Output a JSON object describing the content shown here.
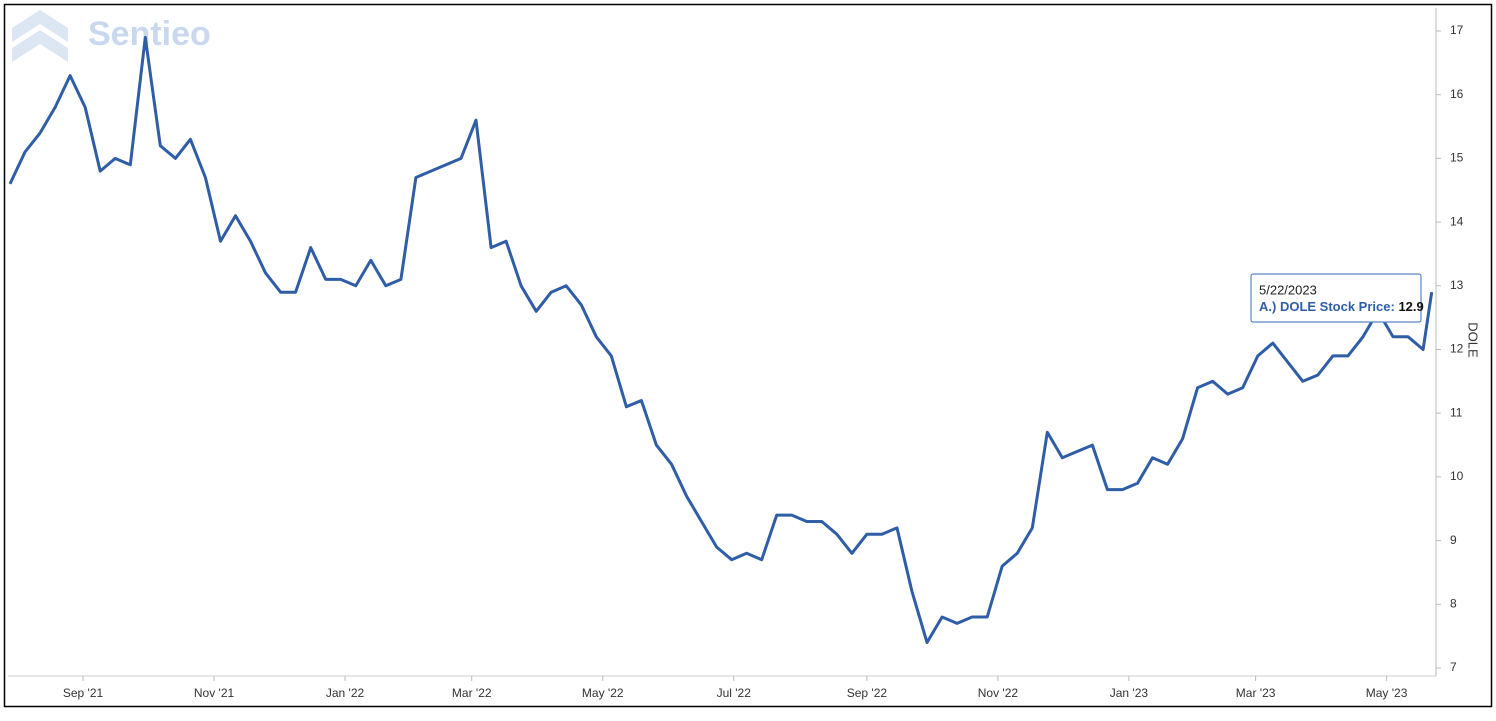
{
  "chart_data": {
    "type": "line",
    "watermark": "Sentieo",
    "y_label": "DOLE",
    "x": [
      "2021-07-29",
      "2021-08-05",
      "2021-08-12",
      "2021-08-19",
      "2021-08-26",
      "2021-09-02",
      "2021-09-09",
      "2021-09-16",
      "2021-09-23",
      "2021-09-30",
      "2021-10-07",
      "2021-10-14",
      "2021-10-21",
      "2021-10-28",
      "2021-11-04",
      "2021-11-11",
      "2021-11-18",
      "2021-11-25",
      "2021-12-02",
      "2021-12-09",
      "2021-12-16",
      "2021-12-23",
      "2021-12-30",
      "2022-01-06",
      "2022-01-13",
      "2022-01-20",
      "2022-01-27",
      "2022-02-03",
      "2022-02-10",
      "2022-02-17",
      "2022-02-24",
      "2022-03-03",
      "2022-03-10",
      "2022-03-17",
      "2022-03-24",
      "2022-03-31",
      "2022-04-07",
      "2022-04-14",
      "2022-04-21",
      "2022-04-28",
      "2022-05-05",
      "2022-05-12",
      "2022-05-19",
      "2022-05-26",
      "2022-06-02",
      "2022-06-09",
      "2022-06-16",
      "2022-06-23",
      "2022-06-30",
      "2022-07-07",
      "2022-07-14",
      "2022-07-21",
      "2022-07-28",
      "2022-08-04",
      "2022-08-11",
      "2022-08-18",
      "2022-08-25",
      "2022-09-01",
      "2022-09-08",
      "2022-09-15",
      "2022-09-22",
      "2022-09-29",
      "2022-10-06",
      "2022-10-13",
      "2022-10-20",
      "2022-10-27",
      "2022-11-03",
      "2022-11-10",
      "2022-11-17",
      "2022-11-24",
      "2022-12-01",
      "2022-12-08",
      "2022-12-15",
      "2022-12-22",
      "2022-12-29",
      "2023-01-05",
      "2023-01-12",
      "2023-01-19",
      "2023-01-26",
      "2023-02-02",
      "2023-02-09",
      "2023-02-16",
      "2023-02-23",
      "2023-03-02",
      "2023-03-09",
      "2023-03-16",
      "2023-03-23",
      "2023-03-30",
      "2023-04-06",
      "2023-04-13",
      "2023-04-20",
      "2023-04-27",
      "2023-05-04",
      "2023-05-11",
      "2023-05-18",
      "2023-05-22"
    ],
    "series": [
      {
        "name": "A.) DOLE Stock Price",
        "color": "#2f5da6",
        "values": [
          14.6,
          15.1,
          15.4,
          15.8,
          16.3,
          15.8,
          14.8,
          15.0,
          14.9,
          16.9,
          15.2,
          15.0,
          15.3,
          14.7,
          13.7,
          14.1,
          13.7,
          13.2,
          12.9,
          12.9,
          13.6,
          13.1,
          13.1,
          13.0,
          13.4,
          13.0,
          13.1,
          14.7,
          14.8,
          14.9,
          15.0,
          15.6,
          13.6,
          13.7,
          13.0,
          12.6,
          12.9,
          13.0,
          12.7,
          12.2,
          11.9,
          11.1,
          11.2,
          10.5,
          10.2,
          9.7,
          9.3,
          8.9,
          8.7,
          8.8,
          8.7,
          9.4,
          9.4,
          9.3,
          9.3,
          9.1,
          8.8,
          9.1,
          9.1,
          9.2,
          8.2,
          7.4,
          7.8,
          7.7,
          7.8,
          7.8,
          8.6,
          8.8,
          9.2,
          10.7,
          10.3,
          10.4,
          10.5,
          9.8,
          9.8,
          9.9,
          10.3,
          10.2,
          10.6,
          11.4,
          11.5,
          11.3,
          11.4,
          11.9,
          12.1,
          11.8,
          11.5,
          11.6,
          11.9,
          11.9,
          12.2,
          12.6,
          12.2,
          12.2,
          12.0,
          12.9
        ]
      }
    ],
    "xlim": [
      "2021-07-29",
      "2023-05-24"
    ],
    "xticks": [
      {
        "value": "2021-09-01",
        "label": "Sep '21"
      },
      {
        "value": "2021-11-01",
        "label": "Nov '21"
      },
      {
        "value": "2022-01-01",
        "label": "Jan '22"
      },
      {
        "value": "2022-03-01",
        "label": "Mar '22"
      },
      {
        "value": "2022-05-01",
        "label": "May '22"
      },
      {
        "value": "2022-07-01",
        "label": "Jul '22"
      },
      {
        "value": "2022-09-01",
        "label": "Sep '22"
      },
      {
        "value": "2022-11-01",
        "label": "Nov '22"
      },
      {
        "value": "2023-01-01",
        "label": "Jan '23"
      },
      {
        "value": "2023-03-01",
        "label": "Mar '23"
      },
      {
        "value": "2023-05-01",
        "label": "May '23"
      }
    ],
    "ylim": [
      7,
      17
    ],
    "yticks": [
      7,
      8,
      9,
      10,
      11,
      12,
      13,
      14,
      15,
      16,
      17
    ],
    "tooltip": {
      "date": "5/22/2023",
      "label": "A.) DOLE Stock Price:",
      "value": 12.9
    }
  }
}
